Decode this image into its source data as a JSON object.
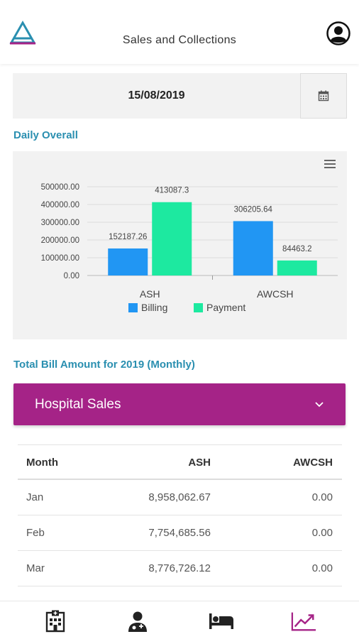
{
  "header": {
    "title": "Sales and Collections"
  },
  "date": {
    "value": "15/08/2019"
  },
  "daily": {
    "section_title": "Daily Overall"
  },
  "chart_data": {
    "type": "bar",
    "categories": [
      "ASH",
      "AWCSH"
    ],
    "series": [
      {
        "name": "Billing",
        "values": [
          152187.26,
          306205.64
        ],
        "labels": [
          "152187.26",
          "306205.64"
        ],
        "color": "#2196f3"
      },
      {
        "name": "Payment",
        "values": [
          413087.3,
          84463.2
        ],
        "labels": [
          "413087.3",
          "84463.2"
        ],
        "color": "#1de9a0"
      }
    ],
    "yticks": [
      "0.00",
      "100000.00",
      "200000.00",
      "300000.00",
      "400000.00",
      "500000.00"
    ],
    "ylim": [
      0,
      500000
    ],
    "legend_position": "bottom",
    "grid": true
  },
  "monthly": {
    "section_title": "Total Bill Amount for 2019 (Monthly)"
  },
  "accordion": {
    "label": "Hospital Sales"
  },
  "table": {
    "headers": [
      "Month",
      "ASH",
      "AWCSH"
    ],
    "rows": [
      [
        "Jan",
        "8,958,062.67",
        "0.00"
      ],
      [
        "Feb",
        "7,754,685.56",
        "0.00"
      ],
      [
        "Mar",
        "8,776,726.12",
        "0.00"
      ]
    ]
  },
  "icons": {
    "logo": "triangle-logo-icon",
    "profile": "user-avatar-icon",
    "calendar": "calendar-icon",
    "chart_menu": "hamburger-menu-icon",
    "chevron": "chevron-down-icon",
    "nav": [
      "hospital-icon",
      "doctor-icon",
      "bed-icon",
      "trending-up-icon"
    ]
  },
  "colors": {
    "accent": "#a52387",
    "section_title": "#2a8fb0",
    "billing": "#2196f3",
    "payment": "#1de9a0"
  }
}
